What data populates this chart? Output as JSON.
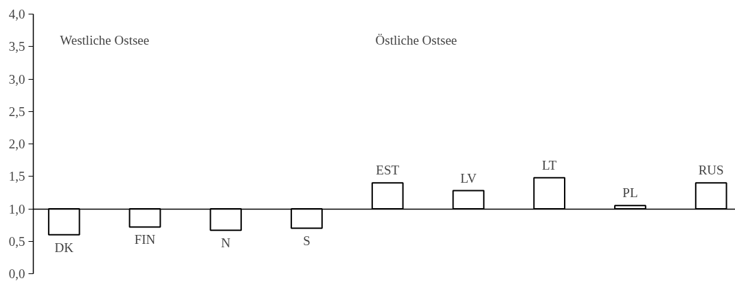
{
  "chart_data": {
    "type": "bar",
    "categories": [
      "DK",
      "FIN",
      "N",
      "S",
      "EST",
      "LV",
      "LT",
      "PL",
      "RUS"
    ],
    "base": [
      1,
      1,
      1,
      1,
      1,
      1,
      1,
      1,
      1
    ],
    "values": [
      -0.4,
      -0.28,
      -0.33,
      -0.3,
      0.4,
      0.28,
      0.48,
      0.05,
      0.4
    ],
    "color": "#ffffff",
    "ylim": [
      0,
      4
    ],
    "yticks": [
      {
        "value": 0,
        "label": "0,0"
      },
      {
        "value": 0.5,
        "label": "0,5"
      },
      {
        "value": 1,
        "label": "1,0"
      },
      {
        "value": 1.5,
        "label": "1,5"
      },
      {
        "value": 2,
        "label": "2,0"
      },
      {
        "value": 2.5,
        "label": "2,5"
      },
      {
        "value": 3,
        "label": "3,0"
      },
      {
        "value": 3.5,
        "label": "3,5"
      },
      {
        "value": 4,
        "label": "4,0"
      }
    ],
    "annotations": [
      "Westliche Ostsee",
      "Östliche Ostsee"
    ],
    "grid": false,
    "tick_labels": "y"
  }
}
